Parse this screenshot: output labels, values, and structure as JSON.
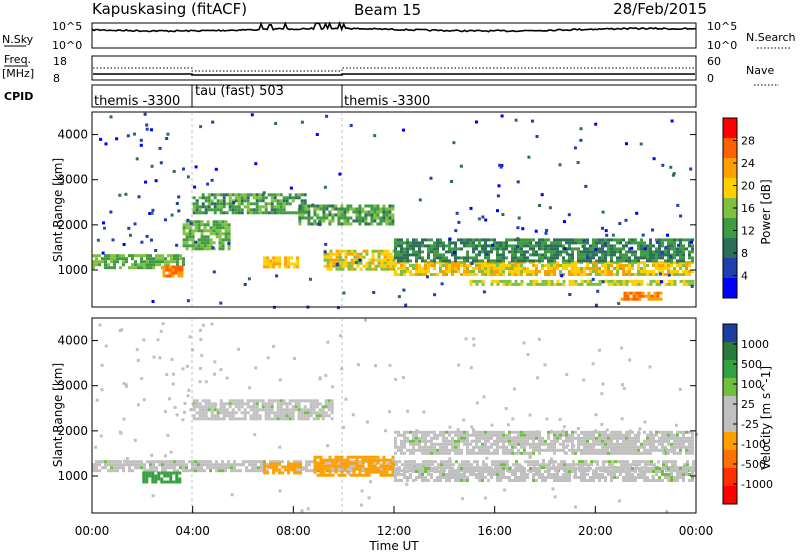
{
  "header": {
    "station": "Kapuskasing (fitACF)",
    "beam": "Beam 15",
    "date": "28/Feb/2015"
  },
  "top_panels": {
    "nsky_label": "N.Sky",
    "nsky_ticks": [
      "10^5",
      "10^0"
    ],
    "nsearch_label": "N.Search",
    "freq_label": "Freq.",
    "freq_unit": "[MHz]",
    "freq_ticks": [
      "18",
      "8"
    ],
    "nave_label": "Nave",
    "nave_ticks": [
      "60",
      "0"
    ],
    "cpid_label": "CPID",
    "cpid_segments": [
      {
        "label": "themis -3300",
        "start_hour": 0,
        "end_hour": 4
      },
      {
        "label": "tau (fast) 503",
        "start_hour": 4,
        "end_hour": 10
      },
      {
        "label": "themis -3300",
        "start_hour": 10,
        "end_hour": 24
      }
    ]
  },
  "colors": {
    "power": [
      "#0000ff",
      "#1f3fae",
      "#2b6f5a",
      "#3f9a40",
      "#80c040",
      "#ffd000",
      "#ffa000",
      "#ff6000",
      "#ff0000"
    ],
    "velocity": [
      "#1c3ea0",
      "#2a7a3a",
      "#35a040",
      "#70c040",
      "#c0c0c0",
      "#c0c0c0",
      "#ffa000",
      "#ff7000",
      "#ff3000",
      "#ff0000"
    ],
    "ground_scatter": "#c0c0c0"
  },
  "chart_data": [
    {
      "type": "heatmap",
      "title": "Power",
      "xlabel": "",
      "ylabel": "Slant Range [km]",
      "colorbar_label": "Power [dB]",
      "colorbar_ticks": [
        "28",
        "24",
        "20",
        "16",
        "12",
        "8",
        "4"
      ],
      "colorbar_range": [
        0,
        32
      ],
      "x_range_hours": [
        0,
        24
      ],
      "y_range_km": [
        180,
        4500
      ],
      "y_ticks": [
        "4000",
        "3000",
        "2000",
        "1000"
      ],
      "echo_bands": [
        {
          "t0": 0,
          "t1": 3.6,
          "r0": 1050,
          "r1": 1350,
          "power": 16
        },
        {
          "t0": 2.8,
          "t1": 3.6,
          "r0": 850,
          "r1": 1100,
          "power": 28
        },
        {
          "t0": 3.6,
          "t1": 5.5,
          "r0": 1500,
          "r1": 2100,
          "power": 16
        },
        {
          "t0": 4.0,
          "t1": 8.5,
          "r0": 2300,
          "r1": 2700,
          "power": 14
        },
        {
          "t0": 6.8,
          "t1": 8.2,
          "r0": 1050,
          "r1": 1300,
          "power": 24
        },
        {
          "t0": 8.2,
          "t1": 12.0,
          "r0": 2000,
          "r1": 2450,
          "power": 14
        },
        {
          "t0": 9.2,
          "t1": 12.0,
          "r0": 1050,
          "r1": 1450,
          "power": 22
        },
        {
          "t0": 12.0,
          "t1": 23.9,
          "r0": 900,
          "r1": 1200,
          "power": 22
        },
        {
          "t0": 12.0,
          "t1": 23.9,
          "r0": 1200,
          "r1": 1700,
          "power": 12
        },
        {
          "t0": 15.0,
          "t1": 23.9,
          "r0": 650,
          "r1": 780,
          "power": 20
        },
        {
          "t0": 21.0,
          "t1": 22.6,
          "r0": 380,
          "r1": 520,
          "power": 28
        }
      ]
    },
    {
      "type": "heatmap",
      "title": "Velocity",
      "xlabel": "Time UT",
      "ylabel": "Slant Range [km]",
      "colorbar_label": "Velocity [m s^-1]",
      "colorbar_ticks": [
        "1000",
        "500",
        "100",
        "25",
        "-25",
        "-100",
        "-500",
        "-1000"
      ],
      "x_ticks": [
        "00:00",
        "04:00",
        "08:00",
        "12:00",
        "16:00",
        "20:00",
        "00:00"
      ],
      "x_range_hours": [
        0,
        24
      ],
      "y_range_km": [
        180,
        4500
      ],
      "y_ticks": [
        "4000",
        "3000",
        "2000",
        "1000"
      ],
      "echo_bands": [
        {
          "t0": 0,
          "t1": 23.9,
          "r0": 1100,
          "r1": 1350,
          "velocity": 0
        },
        {
          "t0": 2.0,
          "t1": 3.5,
          "r0": 850,
          "r1": 1100,
          "velocity": 150
        },
        {
          "t0": 4.0,
          "t1": 9.5,
          "r0": 2300,
          "r1": 2700,
          "velocity": 0
        },
        {
          "t0": 6.8,
          "t1": 8.3,
          "r0": 1050,
          "r1": 1300,
          "velocity": -150
        },
        {
          "t0": 8.8,
          "t1": 12.0,
          "r0": 1000,
          "r1": 1450,
          "velocity": -150
        },
        {
          "t0": 12.0,
          "t1": 23.9,
          "r0": 900,
          "r1": 1200,
          "velocity": 0
        },
        {
          "t0": 12.0,
          "t1": 23.9,
          "r0": 1500,
          "r1": 2000,
          "velocity": 0
        }
      ]
    }
  ]
}
